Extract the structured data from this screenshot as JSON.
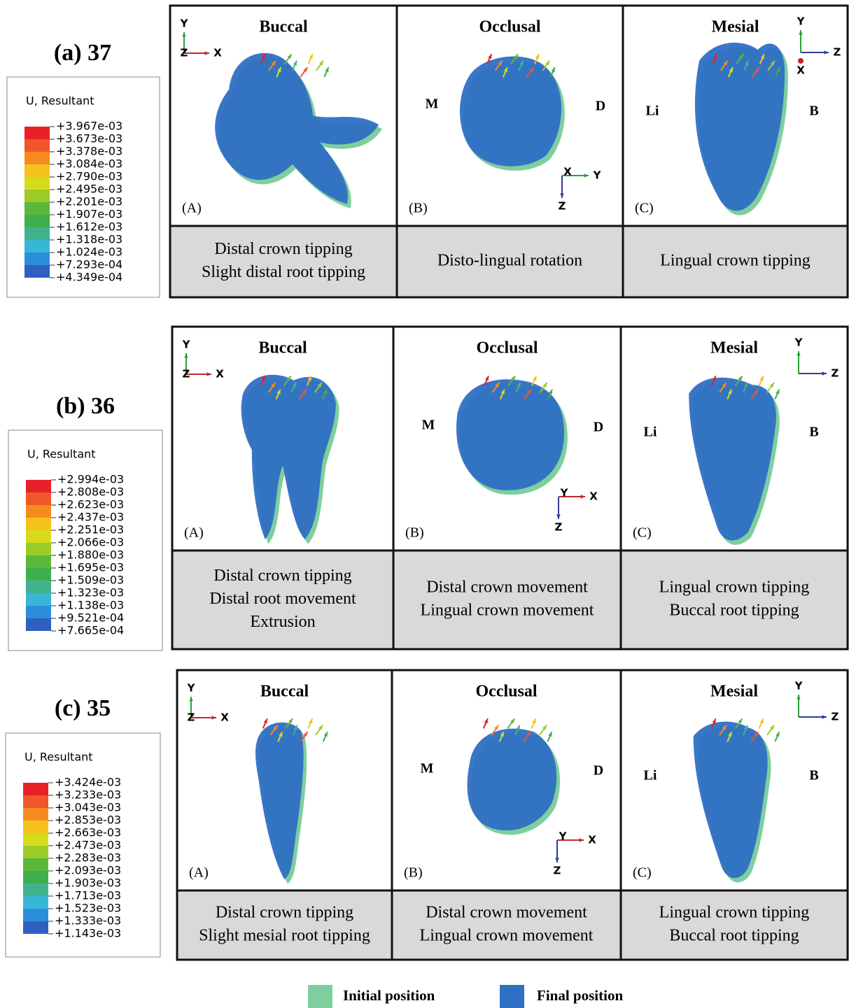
{
  "axis_colors": {
    "X": "#c0282d",
    "Y": "#2aa33a",
    "Z": "#2f3d9c"
  },
  "contour_colors": [
    "#e8202a",
    "#f0562a",
    "#f58b1f",
    "#f5c21b",
    "#d6dc1c",
    "#9ccb2a",
    "#5cb83a",
    "#3fae4e",
    "#40b38d",
    "#38b6d8",
    "#2c8ed8",
    "#2f5fc1",
    "#2d3fa3"
  ],
  "rows": [
    {
      "label": "(a) 37",
      "legend": {
        "title": "U, Resultant",
        "values": [
          "+3.967e-03",
          "+3.673e-03",
          "+3.378e-03",
          "+3.084e-03",
          "+2.790e-03",
          "+2.495e-03",
          "+2.201e-03",
          "+1.907e-03",
          "+1.612e-03",
          "+1.318e-03",
          "+1.024e-03",
          "+7.293e-04",
          "+4.349e-04"
        ]
      },
      "panels": [
        {
          "title": "Buccal",
          "letter": "(A)",
          "axes": {
            "vertical": "Y",
            "horizontal": "X",
            "origin": "Z"
          },
          "description": [
            "Distal crown tipping",
            "Slight distal root tipping"
          ]
        },
        {
          "title": "Occlusal",
          "letter": "(B)",
          "sides": [
            "M",
            "D"
          ],
          "axes": {
            "vertical": "Z",
            "horizontal": "Y",
            "origin": "X"
          },
          "description": [
            "Disto-lingual rotation"
          ]
        },
        {
          "title": "Mesial",
          "letter": "(C)",
          "sides": [
            "Li",
            "B"
          ],
          "axes": {
            "vertical": "Y",
            "horizontal": "Z",
            "origin": "X"
          },
          "description": [
            "Lingual crown tipping"
          ]
        }
      ]
    },
    {
      "label": "(b) 36",
      "legend": {
        "title": "U, Resultant",
        "values": [
          "+2.994e-03",
          "+2.808e-03",
          "+2.623e-03",
          "+2.437e-03",
          "+2.251e-03",
          "+2.066e-03",
          "+1.880e-03",
          "+1.695e-03",
          "+1.509e-03",
          "+1.323e-03",
          "+1.138e-03",
          "+9.521e-04",
          "+7.665e-04"
        ]
      },
      "panels": [
        {
          "title": "Buccal",
          "letter": "(A)",
          "axes": {
            "vertical": "Y",
            "horizontal": "X",
            "origin": "Z"
          },
          "description": [
            "Distal crown tipping",
            "Distal root movement",
            "Extrusion"
          ]
        },
        {
          "title": "Occlusal",
          "letter": "(B)",
          "sides": [
            "M",
            "D"
          ],
          "axes": {
            "vertical": "Z",
            "horizontal": "X",
            "origin": "Y"
          },
          "description": [
            "Distal crown movement",
            "Lingual crown movement"
          ]
        },
        {
          "title": "Mesial",
          "letter": "(C)",
          "sides": [
            "Li",
            "B"
          ],
          "axes": {
            "vertical": "Y",
            "horizontal": "Z"
          },
          "description": [
            "Lingual crown tipping",
            "Buccal root tipping"
          ]
        }
      ]
    },
    {
      "label": "(c) 35",
      "legend": {
        "title": "U, Resultant",
        "values": [
          "+3.424e-03",
          "+3.233e-03",
          "+3.043e-03",
          "+2.853e-03",
          "+2.663e-03",
          "+2.473e-03",
          "+2.283e-03",
          "+2.093e-03",
          "+1.903e-03",
          "+1.713e-03",
          "+1.523e-03",
          "+1.333e-03",
          "+1.143e-03"
        ]
      },
      "panels": [
        {
          "title": "Buccal",
          "letter": "(A)",
          "axes": {
            "vertical": "Y",
            "horizontal": "X",
            "origin": "Z"
          },
          "description": [
            "Distal crown tipping",
            "Slight mesial root tipping"
          ]
        },
        {
          "title": "Occlusal",
          "letter": "(B)",
          "sides": [
            "M",
            "D"
          ],
          "axes": {
            "vertical": "Z",
            "horizontal": "X",
            "origin": "Y"
          },
          "description": [
            "Distal crown movement",
            "Lingual crown movement"
          ]
        },
        {
          "title": "Mesial",
          "letter": "(C)",
          "sides": [
            "Li",
            "B"
          ],
          "axes": {
            "vertical": "Y",
            "horizontal": "Z"
          },
          "description": [
            "Lingual crown tipping",
            "Buccal root tipping"
          ]
        }
      ]
    }
  ],
  "key": [
    {
      "label": "Initial position",
      "color": "#7fcf9e"
    },
    {
      "label": "Final position",
      "color": "#2f6fc4"
    }
  ]
}
